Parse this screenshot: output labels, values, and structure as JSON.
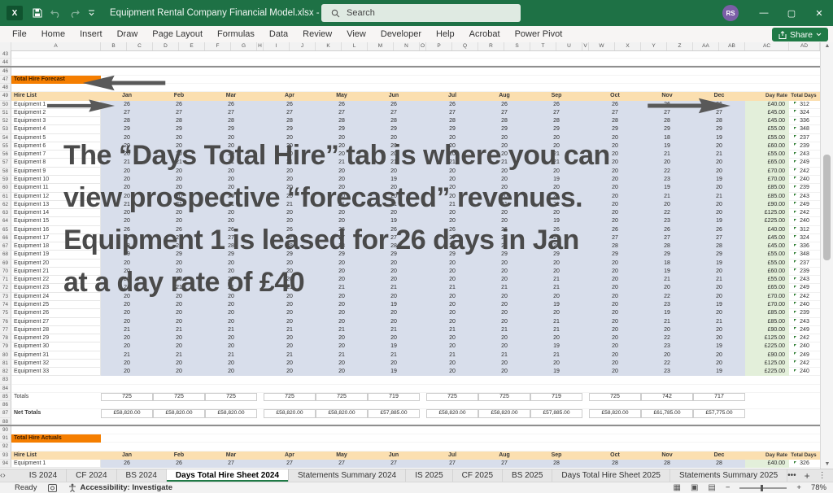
{
  "window": {
    "title": "Equipment Rental Company Financial Model.xlsx - Excel",
    "search_placeholder": "Search",
    "avatar_initials": "RS"
  },
  "ribbon": {
    "tabs": [
      "File",
      "Home",
      "Insert",
      "Draw",
      "Page Layout",
      "Formulas",
      "Data",
      "Review",
      "View",
      "Developer",
      "Help",
      "Acrobat",
      "Power Pivot"
    ],
    "share_label": "Share"
  },
  "grid": {
    "column_letters": [
      "A",
      "B",
      "C",
      "D",
      "E",
      "F",
      "G",
      "H",
      "I",
      "J",
      "K",
      "L",
      "M",
      "N",
      "O",
      "P",
      "Q",
      "R",
      "S",
      "T",
      "U",
      "V",
      "W",
      "X",
      "Y",
      "Z",
      "AA",
      "AB",
      "AC",
      "AD"
    ],
    "first_row": 43,
    "hidden_rows": [
      45,
      89
    ],
    "months": [
      "Jan",
      "Feb",
      "Mar",
      "Apr",
      "May",
      "Jun",
      "Jul",
      "Aug",
      "Sep",
      "Oct",
      "Nov",
      "Dec"
    ],
    "forecast": {
      "banner": "Total Hire Forecast",
      "hire_list_label": "Hire List",
      "day_rate_label": "Day Rate",
      "total_days_label": "Total Days",
      "equipment": [
        {
          "name": "Equipment 1",
          "months": [
            26,
            26,
            26,
            26,
            26,
            26,
            26,
            26,
            26,
            26,
            26,
            26
          ],
          "day_rate": "£40.00",
          "total_days": 312
        },
        {
          "name": "Equipment 2",
          "months": [
            27,
            27,
            27,
            27,
            27,
            27,
            27,
            27,
            27,
            27,
            27,
            27
          ],
          "day_rate": "£45.00",
          "total_days": 324
        },
        {
          "name": "Equipment 3",
          "months": [
            28,
            28,
            28,
            28,
            28,
            28,
            28,
            28,
            28,
            28,
            28,
            28
          ],
          "day_rate": "£45.00",
          "total_days": 336
        },
        {
          "name": "Equipment 4",
          "months": [
            29,
            29,
            29,
            29,
            29,
            29,
            29,
            29,
            29,
            29,
            29,
            29
          ],
          "day_rate": "£55.00",
          "total_days": 348
        },
        {
          "name": "Equipment 5",
          "months": [
            20,
            20,
            20,
            20,
            20,
            20,
            20,
            20,
            20,
            20,
            18,
            19
          ],
          "day_rate": "£55.00",
          "total_days": 237
        },
        {
          "name": "Equipment 6",
          "months": [
            20,
            20,
            20,
            20,
            20,
            20,
            20,
            20,
            20,
            20,
            19,
            20
          ],
          "day_rate": "£60.00",
          "total_days": 239
        },
        {
          "name": "Equipment 7",
          "months": [
            20,
            20,
            20,
            20,
            20,
            20,
            20,
            20,
            21,
            20,
            21,
            21
          ],
          "day_rate": "£55.00",
          "total_days": 243
        },
        {
          "name": "Equipment 8",
          "months": [
            21,
            21,
            21,
            21,
            21,
            21,
            21,
            21,
            21,
            20,
            20,
            20
          ],
          "day_rate": "£65.00",
          "total_days": 249
        },
        {
          "name": "Equipment 9",
          "months": [
            20,
            20,
            20,
            20,
            20,
            20,
            20,
            20,
            20,
            20,
            22,
            20
          ],
          "day_rate": "£70.00",
          "total_days": 242
        },
        {
          "name": "Equipment 10",
          "months": [
            20,
            20,
            20,
            20,
            20,
            19,
            20,
            20,
            19,
            20,
            23,
            19
          ],
          "day_rate": "£70.00",
          "total_days": 240
        },
        {
          "name": "Equipment 11",
          "months": [
            20,
            20,
            20,
            20,
            20,
            20,
            20,
            20,
            20,
            20,
            19,
            20
          ],
          "day_rate": "£85.00",
          "total_days": 239
        },
        {
          "name": "Equipment 12",
          "months": [
            20,
            20,
            20,
            20,
            20,
            20,
            20,
            20,
            21,
            20,
            21,
            21
          ],
          "day_rate": "£85.00",
          "total_days": 243
        },
        {
          "name": "Equipment 13",
          "months": [
            21,
            21,
            21,
            21,
            21,
            21,
            21,
            21,
            21,
            20,
            20,
            20
          ],
          "day_rate": "£90.00",
          "total_days": 249
        },
        {
          "name": "Equipment 14",
          "months": [
            20,
            20,
            20,
            20,
            20,
            20,
            20,
            20,
            20,
            20,
            22,
            20
          ],
          "day_rate": "£125.00",
          "total_days": 242
        },
        {
          "name": "Equipment 15",
          "months": [
            20,
            20,
            20,
            20,
            20,
            19,
            20,
            20,
            19,
            20,
            23,
            19
          ],
          "day_rate": "£225.00",
          "total_days": 240
        },
        {
          "name": "Equipment 16",
          "months": [
            26,
            26,
            26,
            26,
            26,
            26,
            26,
            26,
            26,
            26,
            26,
            26
          ],
          "day_rate": "£40.00",
          "total_days": 312
        },
        {
          "name": "Equipment 17",
          "months": [
            27,
            27,
            27,
            27,
            27,
            27,
            27,
            27,
            27,
            27,
            27,
            27
          ],
          "day_rate": "£45.00",
          "total_days": 324
        },
        {
          "name": "Equipment 18",
          "months": [
            28,
            28,
            28,
            28,
            28,
            28,
            28,
            28,
            28,
            28,
            28,
            28
          ],
          "day_rate": "£45.00",
          "total_days": 336
        },
        {
          "name": "Equipment 19",
          "months": [
            29,
            29,
            29,
            29,
            29,
            29,
            29,
            29,
            29,
            29,
            29,
            29
          ],
          "day_rate": "£55.00",
          "total_days": 348
        },
        {
          "name": "Equipment 20",
          "months": [
            20,
            20,
            20,
            20,
            20,
            20,
            20,
            20,
            20,
            20,
            18,
            19
          ],
          "day_rate": "£55.00",
          "total_days": 237
        },
        {
          "name": "Equipment 21",
          "months": [
            20,
            20,
            20,
            20,
            20,
            20,
            20,
            20,
            20,
            20,
            19,
            20
          ],
          "day_rate": "£60.00",
          "total_days": 239
        },
        {
          "name": "Equipment 22",
          "months": [
            20,
            20,
            20,
            20,
            20,
            20,
            20,
            20,
            21,
            20,
            21,
            21
          ],
          "day_rate": "£55.00",
          "total_days": 243
        },
        {
          "name": "Equipment 23",
          "months": [
            21,
            21,
            21,
            21,
            21,
            21,
            21,
            21,
            21,
            20,
            20,
            20
          ],
          "day_rate": "£65.00",
          "total_days": 249
        },
        {
          "name": "Equipment 24",
          "months": [
            20,
            20,
            20,
            20,
            20,
            20,
            20,
            20,
            20,
            20,
            22,
            20
          ],
          "day_rate": "£70.00",
          "total_days": 242
        },
        {
          "name": "Equipment 25",
          "months": [
            20,
            20,
            20,
            20,
            20,
            19,
            20,
            20,
            19,
            20,
            23,
            19
          ],
          "day_rate": "£70.00",
          "total_days": 240
        },
        {
          "name": "Equipment 26",
          "months": [
            20,
            20,
            20,
            20,
            20,
            20,
            20,
            20,
            20,
            20,
            19,
            20
          ],
          "day_rate": "£85.00",
          "total_days": 239
        },
        {
          "name": "Equipment 27",
          "months": [
            20,
            20,
            20,
            20,
            20,
            20,
            20,
            20,
            21,
            20,
            21,
            21
          ],
          "day_rate": "£85.00",
          "total_days": 243
        },
        {
          "name": "Equipment 28",
          "months": [
            21,
            21,
            21,
            21,
            21,
            21,
            21,
            21,
            21,
            20,
            20,
            20
          ],
          "day_rate": "£90.00",
          "total_days": 249
        },
        {
          "name": "Equipment 29",
          "months": [
            20,
            20,
            20,
            20,
            20,
            20,
            20,
            20,
            20,
            20,
            22,
            20
          ],
          "day_rate": "£125.00",
          "total_days": 242
        },
        {
          "name": "Equipment 30",
          "months": [
            20,
            20,
            20,
            20,
            20,
            19,
            20,
            20,
            19,
            20,
            23,
            19
          ],
          "day_rate": "£225.00",
          "total_days": 240
        },
        {
          "name": "Equipment 31",
          "months": [
            21,
            21,
            21,
            21,
            21,
            21,
            21,
            21,
            21,
            20,
            20,
            20
          ],
          "day_rate": "£90.00",
          "total_days": 249
        },
        {
          "name": "Equipment 32",
          "months": [
            20,
            20,
            20,
            20,
            20,
            20,
            20,
            20,
            20,
            20,
            22,
            20
          ],
          "day_rate": "£125.00",
          "total_days": 242
        },
        {
          "name": "Equipment 33",
          "months": [
            20,
            20,
            20,
            20,
            20,
            19,
            20,
            20,
            19,
            20,
            23,
            19
          ],
          "day_rate": "£225.00",
          "total_days": 240
        }
      ],
      "totals_label": "Totals",
      "totals": [
        725,
        725,
        725,
        725,
        725,
        719,
        725,
        725,
        719,
        725,
        742,
        717
      ],
      "net_totals_label": "Net Totals",
      "net_totals": [
        "£58,820.00",
        "£58,820.00",
        "£58,820.00",
        "£58,820.00",
        "£58,820.00",
        "£57,885.00",
        "£58,820.00",
        "£58,820.00",
        "£57,885.00",
        "£58,820.00",
        "£61,785.00",
        "£57,775.00"
      ]
    },
    "actuals": {
      "banner": "Total Hire Actuals",
      "hire_list_label": "Hire List",
      "day_rate_label": "Day Rate",
      "total_days_label": "Total Days",
      "equipment": [
        {
          "name": "Equipment 1",
          "months": [
            26,
            26,
            27,
            27,
            27,
            27,
            27,
            27,
            28,
            28,
            28,
            28
          ],
          "day_rate": "£40.00",
          "total_days": 326
        }
      ]
    }
  },
  "overlay": {
    "lines": [
      "The “Days Total Hire” tab is where you can",
      "view prospective “forecasted” revenues.",
      "Equipment 1 is leased for 26 days in Jan",
      "at a day rate of £40"
    ]
  },
  "sheet_tabs": {
    "items": [
      "IS 2024",
      "CF 2024",
      "BS 2024",
      "Days Total Hire Sheet 2024",
      "Statements Summary 2024",
      "IS 2025",
      "CF 2025",
      "BS 2025",
      "Days Total Hire Sheet 2025",
      "Statements Summary 2025"
    ],
    "active": "Days Total Hire Sheet 2024"
  },
  "status_bar": {
    "mode": "Ready",
    "accessibility": "Accessibility: Investigate",
    "zoom_level": "78%"
  },
  "colors": {
    "titlebar_green": "#1E7145",
    "banner_orange": "#F57E00",
    "header_tan": "#FBDFB0",
    "selection_blue": "#D8DEEB",
    "rate_green": "#E3EFDA",
    "annotation_gray": "#4a4a4a"
  }
}
